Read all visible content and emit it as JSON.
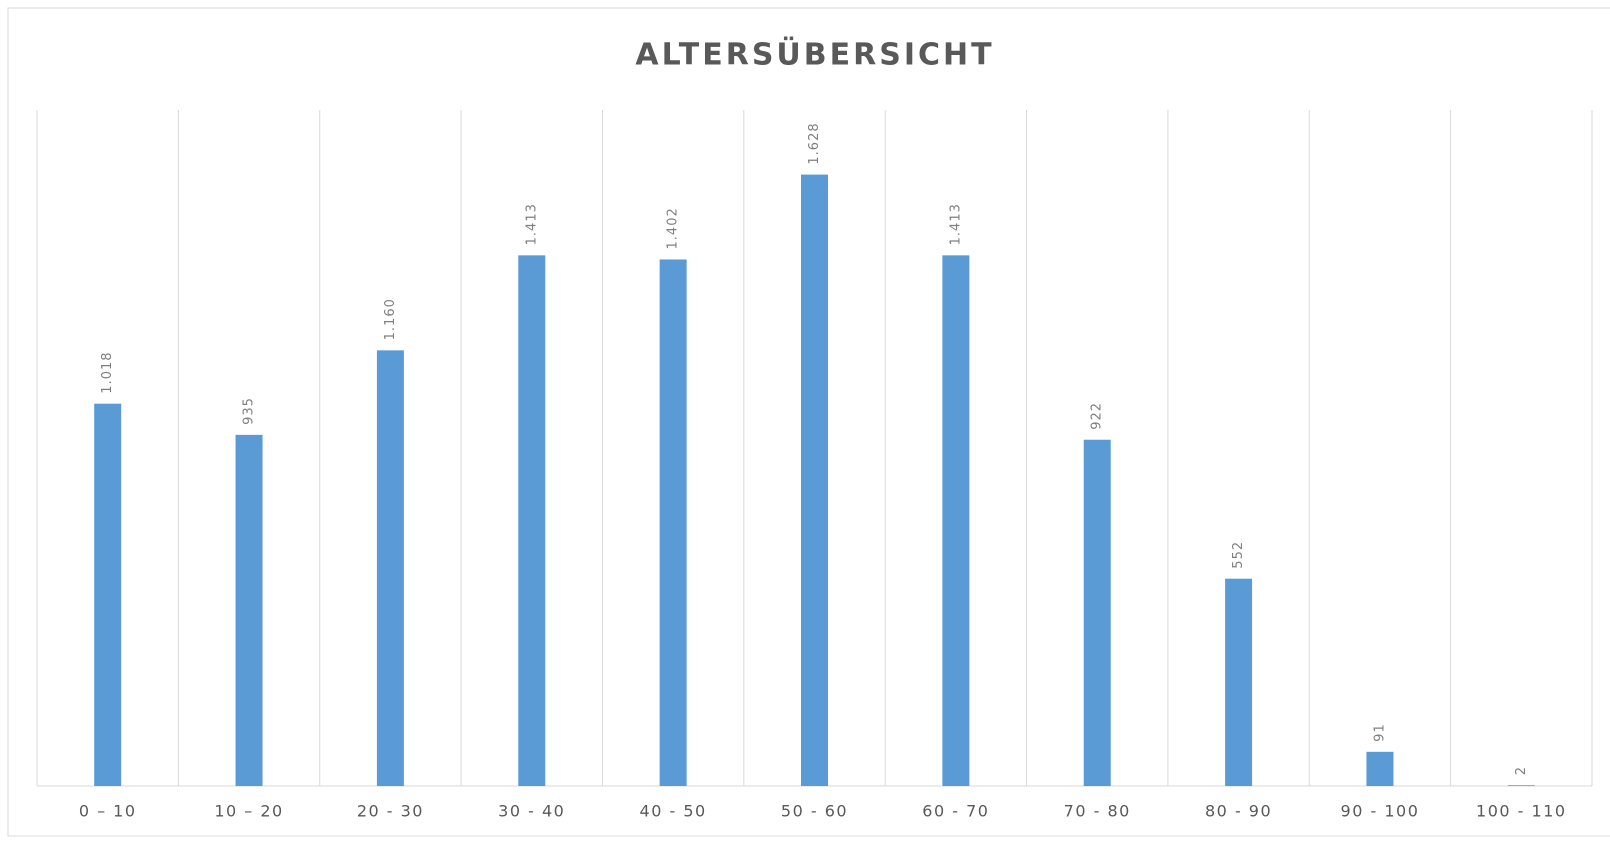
{
  "chart_data": {
    "type": "bar",
    "title": "ALTERSÜBERSICHT",
    "categories": [
      "0 – 10",
      "10 – 20",
      "20 - 30",
      "30 - 40",
      "40 - 50",
      "50 - 60",
      "60 - 70",
      "70 - 80",
      "80 - 90",
      "90 - 100",
      "100 - 110"
    ],
    "values": [
      1018,
      935,
      1160,
      1413,
      1402,
      1628,
      1413,
      922,
      552,
      91,
      2
    ],
    "value_labels": [
      "1.018",
      "935",
      "1.160",
      "1.413",
      "1.402",
      "1.628",
      "1.413",
      "922",
      "552",
      "91",
      "2"
    ],
    "color": "#5b9bd5",
    "ylim": [
      0,
      1800
    ],
    "grid": true
  }
}
